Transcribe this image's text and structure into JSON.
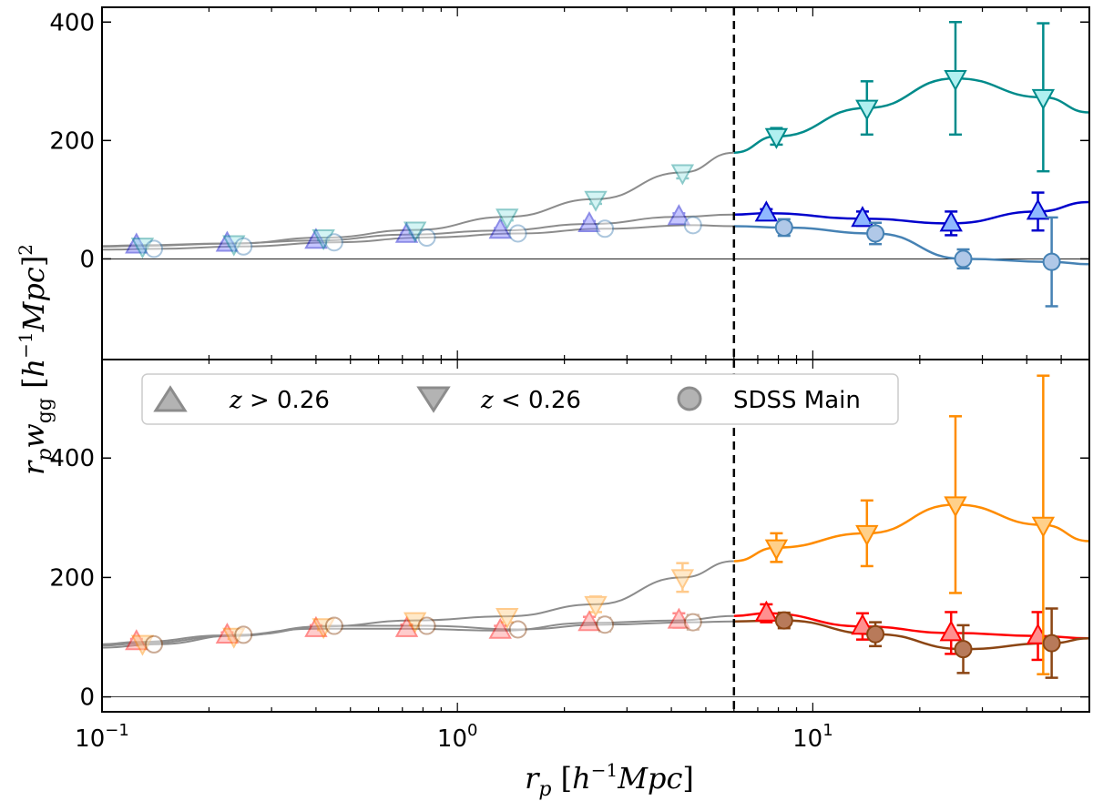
{
  "chart_data": [
    {
      "type": "scatter",
      "panel": "top",
      "xscale": "log",
      "xlim": [
        0.1,
        60
      ],
      "ylim": [
        -170,
        425
      ],
      "yticks": [
        0,
        200,
        400
      ],
      "cut": 6.0,
      "series": [
        {
          "name": "z > 0.26",
          "marker": "triangle-up",
          "color": "#0000cc",
          "x": [
            0.125,
            0.225,
            0.4,
            0.72,
            1.32,
            2.35,
            4.2,
            7.4,
            13.8,
            24.5,
            43.0
          ],
          "y": [
            23,
            26,
            31,
            41,
            48,
            59,
            71,
            77,
            68,
            60,
            80
          ],
          "err": [
            2,
            2,
            3,
            3,
            4,
            5,
            6,
            7,
            12,
            20,
            32
          ]
        },
        {
          "name": "z < 0.26",
          "marker": "triangle-down",
          "color": "#008b8b",
          "x": [
            0.13,
            0.235,
            0.42,
            0.76,
            1.38,
            2.45,
            4.3,
            7.9,
            14.2,
            25.2,
            44.5
          ],
          "y": [
            22,
            26,
            36,
            49,
            71,
            101,
            146,
            207,
            255,
            305,
            273
          ],
          "err": [
            3,
            3,
            4,
            5,
            6,
            8,
            10,
            14,
            45,
            95,
            125
          ]
        },
        {
          "name": "SDSS Main",
          "marker": "circle",
          "color": "#4682b4",
          "x": [
            0.14,
            0.25,
            0.45,
            0.82,
            1.48,
            2.6,
            4.6,
            8.3,
            15.0,
            26.5,
            47.0
          ],
          "y": [
            17,
            21,
            28,
            36,
            43,
            51,
            57,
            53,
            43,
            0,
            -5
          ],
          "err": [
            4,
            4,
            5,
            5,
            7,
            9,
            10,
            14,
            18,
            16,
            75
          ]
        }
      ]
    },
    {
      "type": "scatter",
      "panel": "bottom",
      "xscale": "log",
      "xlim": [
        0.1,
        60
      ],
      "ylim": [
        -25,
        565
      ],
      "yticks": [
        0,
        200,
        400
      ],
      "cut": 6.0,
      "series": [
        {
          "name": "z > 0.26",
          "marker": "triangle-up",
          "color": "#ff0000",
          "x": [
            0.125,
            0.225,
            0.4,
            0.72,
            1.32,
            2.35,
            4.2,
            7.4,
            13.8,
            24.5,
            43.0
          ],
          "y": [
            92,
            103,
            114,
            114,
            111,
            124,
            128,
            140,
            118,
            107,
            102
          ],
          "err": [
            5,
            5,
            6,
            7,
            8,
            10,
            12,
            15,
            22,
            35,
            40
          ]
        },
        {
          "name": "z < 0.26",
          "marker": "triangle-down",
          "color": "#ff8c00",
          "x": [
            0.13,
            0.235,
            0.42,
            0.76,
            1.38,
            2.45,
            4.3,
            7.9,
            14.2,
            25.2,
            44.5
          ],
          "y": [
            90,
            102,
            118,
            128,
            135,
            155,
            200,
            250,
            274,
            322,
            288
          ],
          "err": [
            4,
            5,
            6,
            8,
            10,
            13,
            24,
            24,
            55,
            148,
            250
          ]
        },
        {
          "name": "SDSS Main",
          "marker": "circle",
          "color": "#8b4513",
          "x": [
            0.14,
            0.25,
            0.45,
            0.82,
            1.48,
            2.6,
            4.6,
            8.3,
            15.0,
            26.5,
            47.0
          ],
          "y": [
            88,
            104,
            119,
            119,
            113,
            121,
            125,
            128,
            105,
            80,
            90
          ],
          "err": [
            4,
            5,
            6,
            8,
            9,
            11,
            12,
            13,
            20,
            40,
            58
          ]
        }
      ]
    }
  ],
  "axis": {
    "xlabel": "r_p [h^{-1}Mpc]",
    "ylabel": "r_p w_gg [h^{-1}Mpc]^2",
    "xtick_labels": [
      "10^{-1}",
      "10^{0}",
      "10^{1}"
    ]
  },
  "legend": {
    "location": "top-left of lower panel",
    "entries": [
      {
        "label": "z > 0.26",
        "marker": "triangle-up"
      },
      {
        "label": "z < 0.26",
        "marker": "triangle-down"
      },
      {
        "label": "SDSS Main",
        "marker": "circle"
      }
    ]
  },
  "colors": {
    "top_up": "#0000cc",
    "top_down": "#008b8b",
    "top_circle": "#4682b4",
    "bot_up": "#ff0000",
    "bot_down": "#ff8c00",
    "bot_circle": "#8b4513",
    "model_gray": "#8c8c8c",
    "legend_gray": "#8c8c8c"
  }
}
